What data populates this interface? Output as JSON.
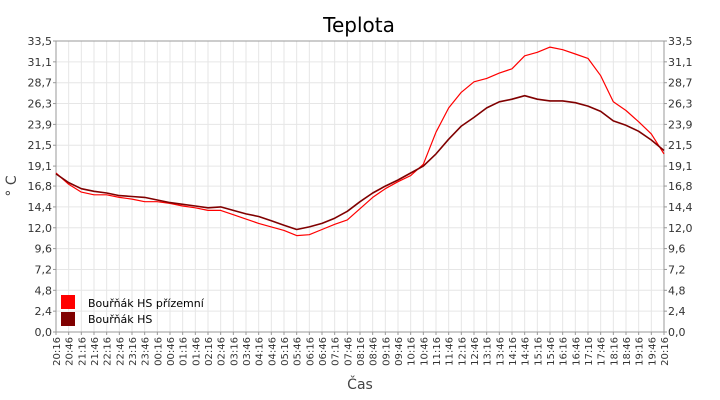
{
  "chart_data": {
    "type": "line",
    "title": "Teplota",
    "xlabel": "Čas",
    "ylabel": "° C",
    "ylim": [
      0,
      33.5
    ],
    "yticks": [
      "0,0",
      "2,4",
      "4,8",
      "7,2",
      "9,6",
      "12,0",
      "14,4",
      "16,8",
      "19,1",
      "21,5",
      "23,9",
      "26,3",
      "28,7",
      "31,1",
      "33,5"
    ],
    "ytick_values": [
      0,
      2.4,
      4.8,
      7.2,
      9.6,
      12.0,
      14.4,
      16.8,
      19.1,
      21.5,
      23.9,
      26.3,
      28.7,
      31.1,
      33.5
    ],
    "xticks": [
      "20:16",
      "20:46",
      "21:16",
      "21:46",
      "22:16",
      "22:46",
      "23:16",
      "23:46",
      "00:16",
      "00:46",
      "01:16",
      "01:46",
      "02:16",
      "02:46",
      "03:16",
      "03:46",
      "04:16",
      "04:46",
      "05:16",
      "05:46",
      "06:16",
      "06:46",
      "07:16",
      "07:46",
      "08:16",
      "08:46",
      "09:16",
      "09:46",
      "10:16",
      "10:46",
      "11:16",
      "11:46",
      "12:16",
      "12:46",
      "13:16",
      "13:46",
      "14:16",
      "14:46",
      "15:16",
      "15:46",
      "16:16",
      "16:46",
      "17:16",
      "17:46",
      "18:16",
      "18:46",
      "19:16",
      "19:46",
      "20:16"
    ],
    "grid": true,
    "legend_position": "bottom-left",
    "series": [
      {
        "name": "Bouřňák HS přízemní",
        "color": "#ff0000",
        "values": [
          18.3,
          17.0,
          16.1,
          15.8,
          15.8,
          15.5,
          15.3,
          15.0,
          15.0,
          14.8,
          14.5,
          14.3,
          14.0,
          14.0,
          13.5,
          13.0,
          12.5,
          12.1,
          11.7,
          11.1,
          11.2,
          11.8,
          12.4,
          12.9,
          14.2,
          15.5,
          16.5,
          17.3,
          18.0,
          19.3,
          23.0,
          25.8,
          27.6,
          28.8,
          29.2,
          29.8,
          30.3,
          31.8,
          32.2,
          32.8,
          32.5,
          32.0,
          31.5,
          29.5,
          26.5,
          25.5,
          24.2,
          22.8,
          20.5
        ]
      },
      {
        "name": "Bouřňák HS",
        "color": "#800000",
        "values": [
          18.2,
          17.2,
          16.5,
          16.2,
          16.0,
          15.7,
          15.6,
          15.5,
          15.2,
          14.9,
          14.7,
          14.5,
          14.3,
          14.4,
          14.0,
          13.6,
          13.3,
          12.8,
          12.3,
          11.8,
          12.1,
          12.5,
          13.1,
          13.9,
          15.0,
          16.0,
          16.8,
          17.5,
          18.3,
          19.1,
          20.5,
          22.2,
          23.7,
          24.7,
          25.8,
          26.5,
          26.8,
          27.2,
          26.8,
          26.6,
          26.6,
          26.4,
          26.0,
          25.4,
          24.3,
          23.8,
          23.1,
          22.1,
          20.9
        ]
      }
    ]
  }
}
